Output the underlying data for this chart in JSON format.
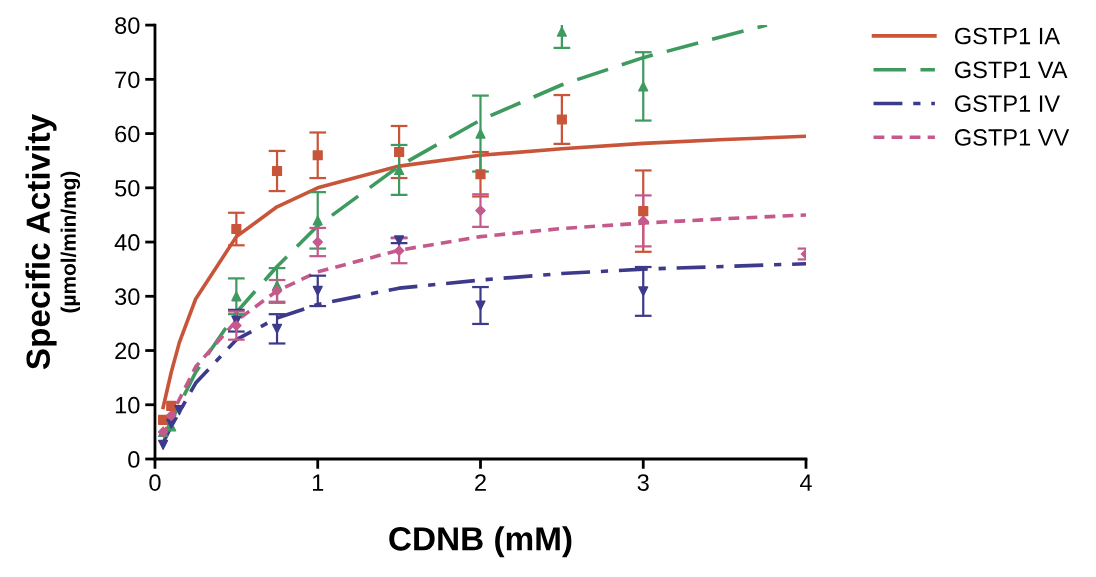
{
  "chart_data": {
    "type": "scatter",
    "xlabel": "CDNB (mM)",
    "ylabel": "Specific Activity\n(µmol/min/mg)",
    "xlim": [
      0,
      4
    ],
    "ylim": [
      0,
      80
    ],
    "xticks": [
      0,
      1,
      2,
      3,
      4
    ],
    "yticks": [
      0,
      10,
      20,
      30,
      40,
      50,
      60,
      70,
      80
    ],
    "grid": false,
    "legend": "top right",
    "series": [
      {
        "type": "line",
        "name": "GSTP1 IA",
        "color": "#c8553a",
        "line_style": "solid",
        "marker": "none",
        "x": [
          0.05,
          0.1,
          0.15,
          0.25,
          0.5,
          0.75,
          1,
          1.5,
          2,
          2.5,
          3,
          3.5,
          4
        ],
        "values": [
          9.5,
          16,
          21.5,
          29.5,
          41,
          46.5,
          50,
          54,
          56,
          57.2,
          58.2,
          58.9,
          59.5
        ]
      },
      {
        "type": "line",
        "name": "GSTP1 VA",
        "color": "#3f9a5f",
        "line_style": "dashed",
        "marker": "none",
        "x": [
          0.05,
          0.1,
          0.25,
          0.5,
          0.75,
          1,
          1.5,
          2,
          2.5,
          3,
          3.5,
          3.76
        ],
        "values": [
          4,
          7,
          16,
          27,
          35.5,
          43,
          54,
          62.5,
          69,
          74,
          78,
          80
        ]
      },
      {
        "type": "line",
        "name": "GSTP1 IV",
        "color": "#3d3a8c",
        "line_style": "dashdot",
        "marker": "none",
        "x": [
          0.05,
          0.1,
          0.25,
          0.5,
          0.75,
          1,
          1.5,
          2,
          2.5,
          3,
          3.5,
          4
        ],
        "values": [
          3,
          6,
          14,
          22,
          26,
          28.5,
          31.5,
          33,
          34.2,
          35,
          35.5,
          36
        ]
      },
      {
        "type": "line",
        "name": "GSTP1 VV",
        "color": "#c45a8c",
        "line_style": "dotted",
        "marker": "none",
        "x": [
          0.05,
          0.1,
          0.25,
          0.5,
          0.75,
          1,
          1.5,
          2,
          2.5,
          3,
          3.5,
          4
        ],
        "values": [
          4,
          8,
          17,
          25.5,
          31,
          34.5,
          38.5,
          41,
          42.5,
          43.5,
          44.3,
          45
        ]
      },
      {
        "color": "#c8553a",
        "marker": "square",
        "x": [
          0.05,
          0.1,
          0.5,
          0.75,
          1,
          1.5,
          2,
          2.5,
          3
        ],
        "values": [
          7.2,
          9.8,
          42.4,
          53.1,
          56,
          56.6,
          52.5,
          62.6,
          45.7
        ],
        "errors": [
          null,
          null,
          3,
          3.7,
          4.2,
          4.8,
          4.1,
          4.5,
          7.5
        ]
      },
      {
        "color": "#3f9a5f",
        "marker": "triangle",
        "x": [
          0.05,
          0.1,
          0.5,
          0.75,
          1,
          1.5,
          2,
          2.5,
          3
        ],
        "values": [
          5,
          6,
          30,
          32,
          44,
          53.3,
          60,
          78.8,
          68.7
        ],
        "errors": [
          null,
          null,
          3.3,
          3.2,
          5.2,
          4.6,
          7,
          3,
          6.3
        ]
      },
      {
        "color": "#3d3a8c",
        "marker": "triangle_down",
        "x": [
          0.05,
          0.1,
          0.15,
          0.5,
          0.75,
          1,
          1.5,
          2,
          3
        ],
        "values": [
          2.6,
          6.5,
          9,
          25.5,
          24,
          31,
          40.3,
          28.3,
          30.9
        ],
        "errors": [
          null,
          null,
          null,
          2,
          2.7,
          2.8,
          0.5,
          3.4,
          4.5
        ]
      },
      {
        "color": "#c45a8c",
        "marker": "diamond",
        "x": [
          0.05,
          0.1,
          0.5,
          0.75,
          1,
          1.5,
          2,
          3,
          4
        ],
        "values": [
          5,
          8,
          24.6,
          31,
          40,
          38.4,
          45.8,
          43.9,
          37.8
        ],
        "errors": [
          null,
          null,
          2.6,
          2,
          2.6,
          2.3,
          3,
          4.7,
          1
        ]
      }
    ]
  }
}
